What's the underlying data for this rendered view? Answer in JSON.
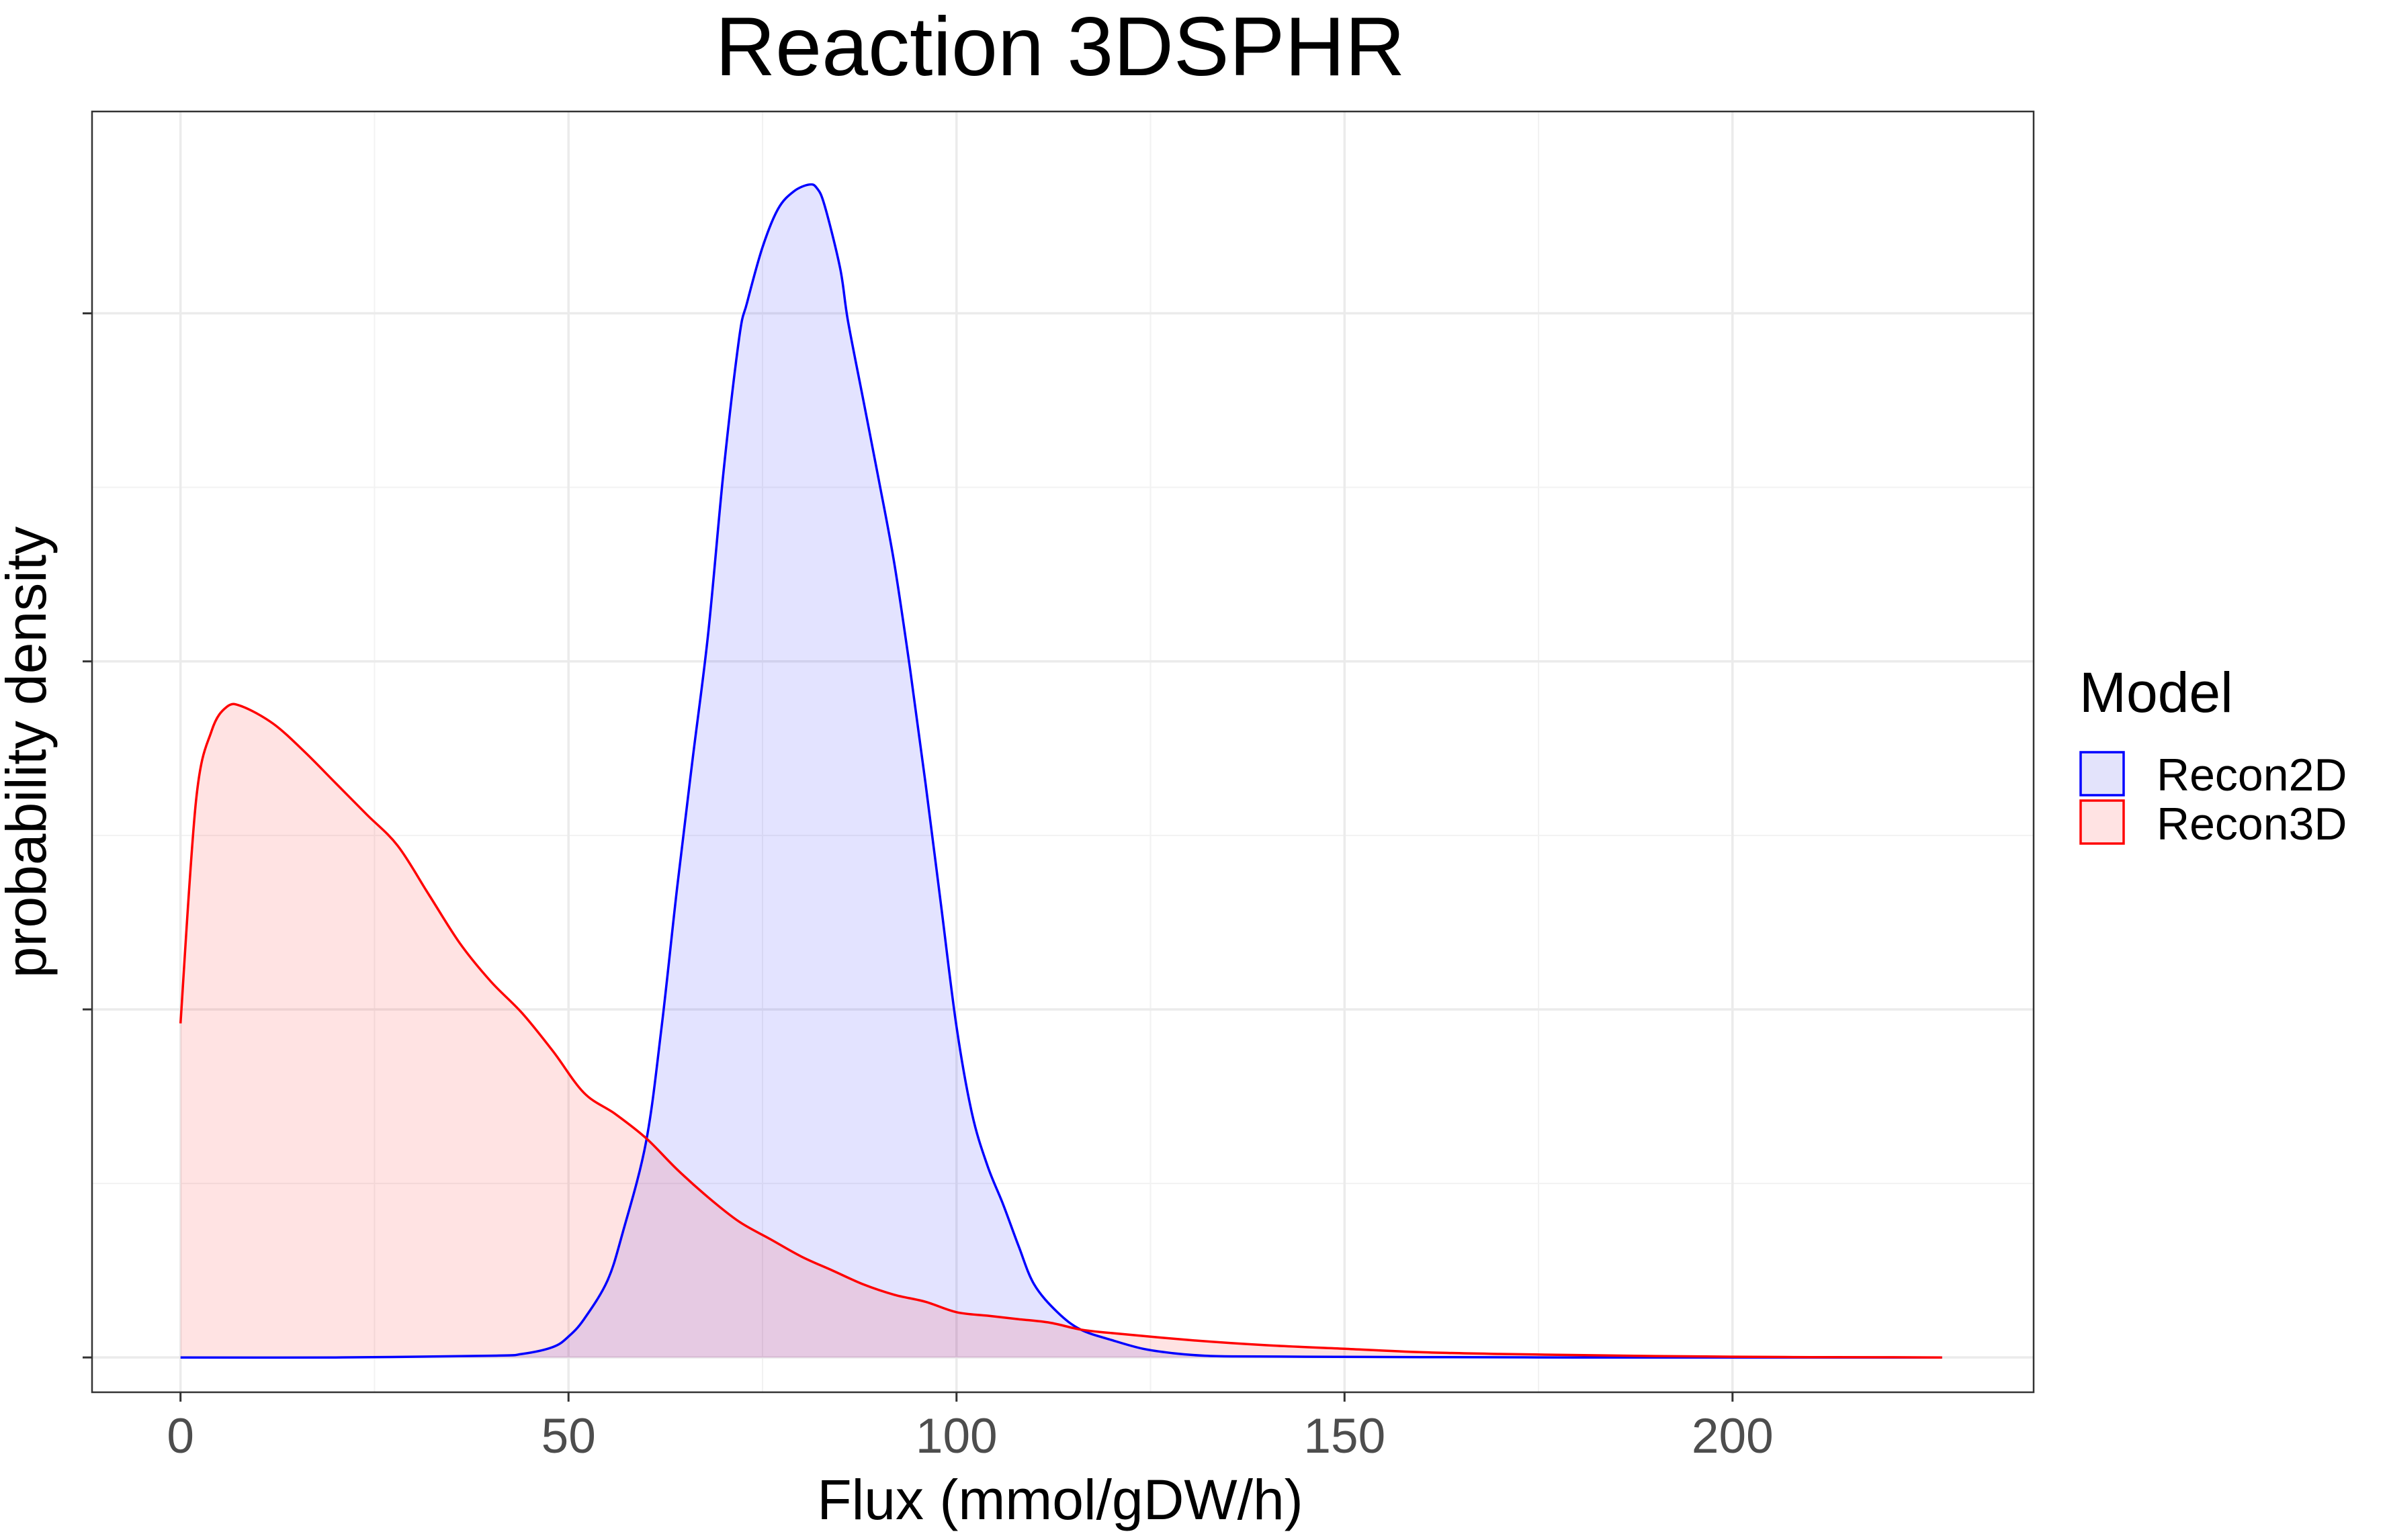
{
  "chart_data": {
    "type": "area",
    "title": "Reaction 3DSPHR",
    "xlabel": "Flux (mmol/gDW/h)",
    "ylabel": "probability density",
    "xlim": [
      -11.4,
      238.8
    ],
    "ylim": [
      -0.1,
      3.58
    ],
    "x_ticks": [
      0,
      50,
      100,
      150,
      200
    ],
    "x_tick_labels": [
      "0",
      "50",
      "100",
      "150",
      "200"
    ],
    "y_ticks": [
      0,
      1,
      2,
      3
    ],
    "y_tick_labels_shown": false,
    "grid": true,
    "legend": {
      "title": "Model",
      "position": "right",
      "entries": [
        "Recon2D",
        "Recon3D"
      ]
    },
    "series": [
      {
        "name": "Recon2D",
        "line_color": "#0000ff",
        "fill_color": "#e3e3fb",
        "x": [
          0,
          20,
          40,
          44,
          48,
          50,
          52,
          55,
          57,
          60,
          62,
          64,
          66,
          68,
          70,
          72,
          73,
          75,
          77,
          79,
          81,
          82,
          83,
          85,
          86,
          88,
          90,
          92,
          94,
          96,
          98,
          100,
          102,
          104,
          106,
          108,
          110,
          113,
          116,
          120,
          124,
          128,
          132,
          136,
          145,
          160,
          180,
          200,
          220,
          227
        ],
        "y": [
          0,
          0,
          0.005,
          0.01,
          0.03,
          0.06,
          0.11,
          0.22,
          0.36,
          0.62,
          0.95,
          1.35,
          1.72,
          2.08,
          2.55,
          2.93,
          3.03,
          3.19,
          3.3,
          3.35,
          3.37,
          3.36,
          3.31,
          3.13,
          2.98,
          2.75,
          2.52,
          2.28,
          1.98,
          1.65,
          1.3,
          0.95,
          0.7,
          0.55,
          0.44,
          0.32,
          0.21,
          0.13,
          0.08,
          0.05,
          0.025,
          0.012,
          0.005,
          0.003,
          0.002,
          0.001,
          0,
          0,
          0,
          0
        ]
      },
      {
        "name": "Recon3D",
        "line_color": "#ff0000",
        "fill_color": "#ffe3e3",
        "x": [
          0,
          2,
          4,
          6,
          8,
          12,
          16,
          20,
          24,
          28,
          32,
          36,
          40,
          44,
          48,
          52,
          56,
          60,
          64,
          68,
          72,
          76,
          80,
          84,
          88,
          92,
          96,
          100,
          104,
          108,
          112,
          116,
          120,
          130,
          140,
          150,
          160,
          170,
          180,
          190,
          200,
          210,
          220,
          227
        ],
        "y": [
          0.96,
          1.6,
          1.8,
          1.87,
          1.87,
          1.82,
          1.74,
          1.65,
          1.56,
          1.47,
          1.33,
          1.19,
          1.08,
          0.99,
          0.88,
          0.76,
          0.7,
          0.63,
          0.54,
          0.46,
          0.39,
          0.34,
          0.29,
          0.25,
          0.21,
          0.18,
          0.16,
          0.13,
          0.12,
          0.11,
          0.1,
          0.08,
          0.07,
          0.05,
          0.035,
          0.025,
          0.015,
          0.01,
          0.007,
          0.004,
          0.002,
          0.001,
          0.0005,
          0
        ]
      }
    ]
  }
}
